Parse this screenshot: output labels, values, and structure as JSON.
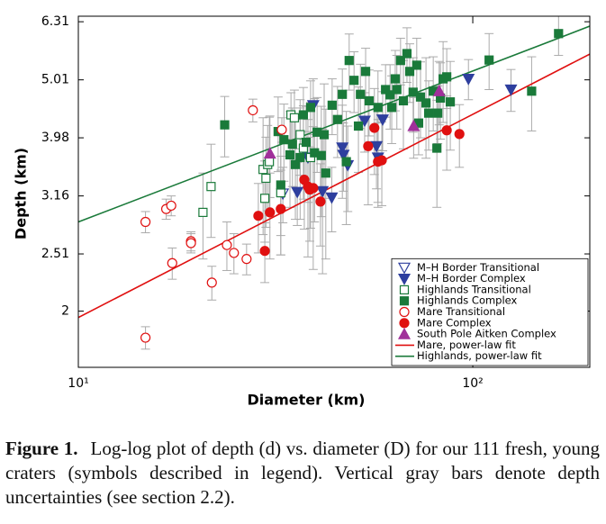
{
  "chart_data": {
    "type": "scatter",
    "x_label": "Diameter (km)",
    "y_label": "Depth (km)",
    "log_x": true,
    "log_y": true,
    "xlim": [
      10,
      198
    ],
    "ylim": [
      1.6,
      6.45
    ],
    "xticks": [
      {
        "value": 10,
        "label": "10¹"
      },
      {
        "value": 100,
        "label": "10²"
      }
    ],
    "yticks": [
      2.0,
      2.51,
      3.16,
      3.98,
      5.01,
      6.31
    ],
    "legend": "lower right",
    "error_color": "#aaaaaa",
    "series": [
      {
        "name": "M–H Border Transitional",
        "color": "#2e3f9e",
        "marker": "open-triangle-down",
        "x": [
          33.0
        ],
        "values": [
          3.19
        ],
        "errors": [
          0.35
        ]
      },
      {
        "name": "M–H Border Complex",
        "color": "#2e3f9e",
        "marker": "triangle-down",
        "x": [
          35.9,
          39.4,
          41.6,
          43.9,
          46.7,
          47.0,
          48.2,
          53.2,
          57.0,
          59.1,
          57.5,
          97.5,
          125,
          38.2
        ],
        "values": [
          3.21,
          4.53,
          3.22,
          3.14,
          3.83,
          3.72,
          3.57,
          4.26,
          3.85,
          4.28,
          3.68,
          5.03,
          4.82,
          3.68
        ],
        "errors": [
          0.4,
          0.5,
          0.9,
          0.4,
          0.7,
          0.5,
          0.6,
          0.5,
          0.6,
          0.5,
          0.6,
          0.4,
          0.4,
          0.6
        ]
      },
      {
        "name": "Highlands Transitional",
        "color": "#1a7a3a",
        "marker": "open-square",
        "x": [
          20.7,
          21.7,
          29.4,
          29.7,
          29.9,
          30.2,
          30.5,
          32.6,
          34.6,
          35.3,
          36.5,
          38.8,
          37.2
        ],
        "values": [
          2.96,
          3.28,
          3.51,
          3.13,
          3.39,
          3.58,
          3.62,
          3.2,
          4.36,
          4.31,
          4.03,
          3.68,
          3.82
        ],
        "errors": [
          0.5,
          0.6,
          0.8,
          0.5,
          0.6,
          0.6,
          0.7,
          0.5,
          0.4,
          0.5,
          0.6,
          0.9,
          0.7
        ]
      },
      {
        "name": "Highlands Complex",
        "color": "#1a7a3a",
        "marker": "square",
        "x": [
          23.5,
          32.1,
          32.6,
          33.2,
          34.4,
          34.9,
          35.5,
          36.5,
          37.2,
          37.8,
          38.8,
          39.7,
          40.3,
          41.3,
          42.4,
          44.0,
          45.4,
          46.7,
          47.8,
          48.6,
          50.0,
          51.3,
          53.5,
          54.6,
          57.5,
          60.1,
          61.7,
          63.6,
          64.2,
          65.6,
          66.7,
          68.1,
          69.2,
          70.6,
          72.1,
          73.7,
          76.1,
          77.3,
          79.4,
          81.5,
          82.8,
          84.1,
          85.9,
          87.7,
          110,
          141,
          165,
          62.3,
          42.0,
          72.9,
          81.1,
          51.9
        ],
        "values": [
          4.19,
          4.08,
          3.3,
          3.95,
          3.72,
          3.88,
          3.58,
          3.68,
          4.36,
          3.91,
          4.49,
          3.75,
          4.07,
          3.71,
          3.46,
          4.53,
          4.28,
          4.73,
          3.62,
          5.41,
          5.0,
          4.17,
          5.18,
          4.61,
          4.49,
          4.82,
          4.72,
          5.03,
          4.82,
          5.41,
          4.61,
          5.56,
          5.18,
          4.77,
          5.31,
          4.68,
          4.57,
          4.39,
          4.79,
          4.39,
          4.66,
          5.03,
          5.07,
          4.59,
          5.42,
          4.79,
          6.02,
          4.49,
          4.03,
          4.22,
          3.82,
          4.73
        ],
        "errors": [
          0.5,
          0.6,
          0.8,
          0.6,
          0.7,
          0.6,
          0.7,
          0.8,
          0.5,
          0.6,
          0.5,
          0.9,
          0.6,
          0.8,
          1.0,
          0.5,
          0.6,
          0.5,
          0.8,
          0.6,
          0.6,
          0.7,
          0.5,
          0.6,
          0.7,
          0.5,
          0.6,
          0.6,
          0.7,
          0.5,
          0.8,
          0.6,
          0.6,
          0.7,
          0.6,
          0.7,
          0.9,
          0.6,
          0.7,
          0.5,
          0.7,
          0.8,
          0.6,
          0.8,
          0.6,
          0.7,
          0.5,
          0.6,
          0.9,
          0.5,
          0.8,
          0.6
        ]
      },
      {
        "name": "Mare Transitional",
        "color": "#e01010",
        "marker": "open-circle",
        "x": [
          14.8,
          14.8,
          16.7,
          17.2,
          17.3,
          19.3,
          19.3,
          21.8,
          23.8,
          24.8,
          26.7,
          27.7,
          32.8
        ],
        "values": [
          1.8,
          2.85,
          3.0,
          3.04,
          2.42,
          2.64,
          2.62,
          2.24,
          2.6,
          2.52,
          2.46,
          4.44,
          4.11
        ],
        "errors": [
          0.08,
          0.12,
          0.12,
          0.12,
          0.15,
          0.1,
          0.1,
          0.15,
          0.25,
          0.2,
          0.15,
          0.2,
          0.2
        ]
      },
      {
        "name": "Mare Complex",
        "color": "#e01010",
        "marker": "circle",
        "x": [
          28.6,
          29.7,
          30.6,
          32.6,
          37.4,
          38.2,
          38.6,
          39.4,
          41.1,
          54.3,
          56.3,
          57.5,
          58.8,
          85.9,
          92.5
        ],
        "values": [
          2.92,
          2.54,
          2.96,
          3.0,
          3.37,
          3.28,
          3.24,
          3.26,
          3.09,
          3.85,
          4.14,
          3.62,
          3.64,
          4.1,
          4.04
        ],
        "errors": [
          0.4,
          0.3,
          0.5,
          0.5,
          0.6,
          0.8,
          0.6,
          0.9,
          0.5,
          0.8,
          0.7,
          0.6,
          0.6,
          0.6,
          0.5
        ]
      },
      {
        "name": "South Pole Aitken Complex",
        "color": "#a0309a",
        "marker": "triangle-up",
        "x": [
          30.6,
          70.8,
          82.2
        ],
        "values": [
          3.74,
          4.17,
          4.79
        ],
        "errors": [
          0.6,
          0.5,
          0.6
        ]
      }
    ],
    "fits": [
      {
        "name": "Mare, power-law fit",
        "color": "#e01010",
        "x": [
          10,
          198
        ],
        "values": [
          1.95,
          5.55
        ]
      },
      {
        "name": "Highlands, power-law fit",
        "color": "#1a7a3a",
        "x": [
          10,
          198
        ],
        "values": [
          2.85,
          6.2
        ]
      }
    ]
  },
  "caption": {
    "label": "Figure 1.",
    "text": "Log-log plot of depth (d) vs. diameter (D) for our 111 fresh, young craters (symbols described in legend). Vertical gray bars denote depth uncertainties (see section 2.2)."
  }
}
